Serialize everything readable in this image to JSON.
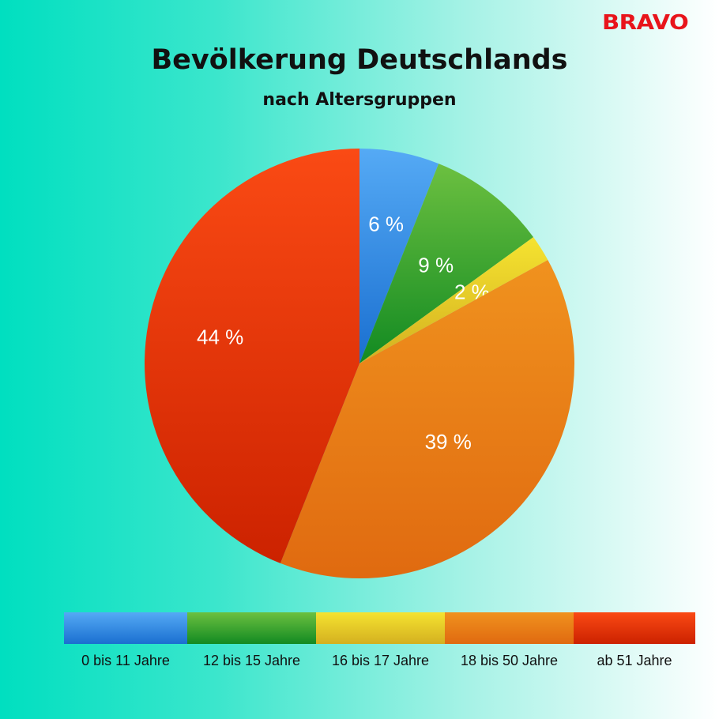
{
  "logo": "BRAVO",
  "chart_data": {
    "type": "pie",
    "title": "Bevölkerung Deutschlands",
    "subtitle": "nach Altersgruppen",
    "categories": [
      "0 bis 11 Jahre",
      "12 bis 15 Jahre",
      "16 bis 17 Jahre",
      "18 bis 50 Jahre",
      "ab 51 Jahre"
    ],
    "values": [
      6,
      9,
      2,
      39,
      44
    ],
    "data_labels": [
      "6 %",
      "9 %",
      "2 %",
      "39 %",
      "44 %"
    ],
    "colors": [
      [
        "#55aaf5",
        "#1a6fd0"
      ],
      [
        "#6cc040",
        "#128a22"
      ],
      [
        "#f5e330",
        "#d4b020"
      ],
      [
        "#f0921e",
        "#e06a10"
      ],
      [
        "#fa4a14",
        "#cc2200"
      ]
    ],
    "legend_placement": "bottom"
  }
}
